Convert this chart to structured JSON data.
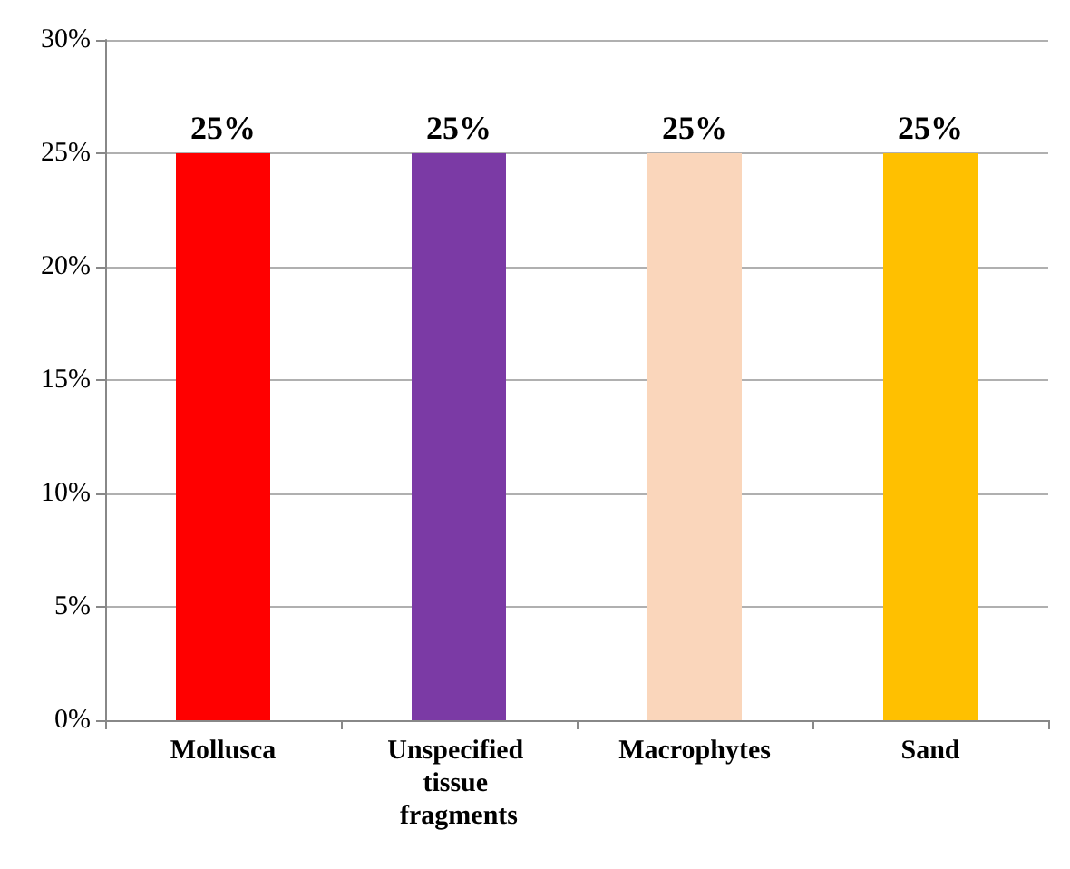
{
  "chart_data": {
    "type": "bar",
    "categories": [
      "Mollusca",
      "Unspecified tissue fragments",
      "Macrophytes",
      "Sand"
    ],
    "values": [
      25,
      25,
      25,
      25
    ],
    "colors": [
      "#ff0000",
      "#7b3aa5",
      "#fad6bb",
      "#ffc000"
    ],
    "value_labels": [
      "25%",
      "25%",
      "25%",
      "25%"
    ],
    "ylim": [
      0,
      30
    ],
    "yticks": [
      {
        "value": 0,
        "label": "0%"
      },
      {
        "value": 5,
        "label": "5%"
      },
      {
        "value": 10,
        "label": "10%"
      },
      {
        "value": 15,
        "label": "15%"
      },
      {
        "value": 20,
        "label": "20%"
      },
      {
        "value": 25,
        "label": "25%"
      },
      {
        "value": 30,
        "label": "30%"
      }
    ],
    "grid": "y"
  }
}
